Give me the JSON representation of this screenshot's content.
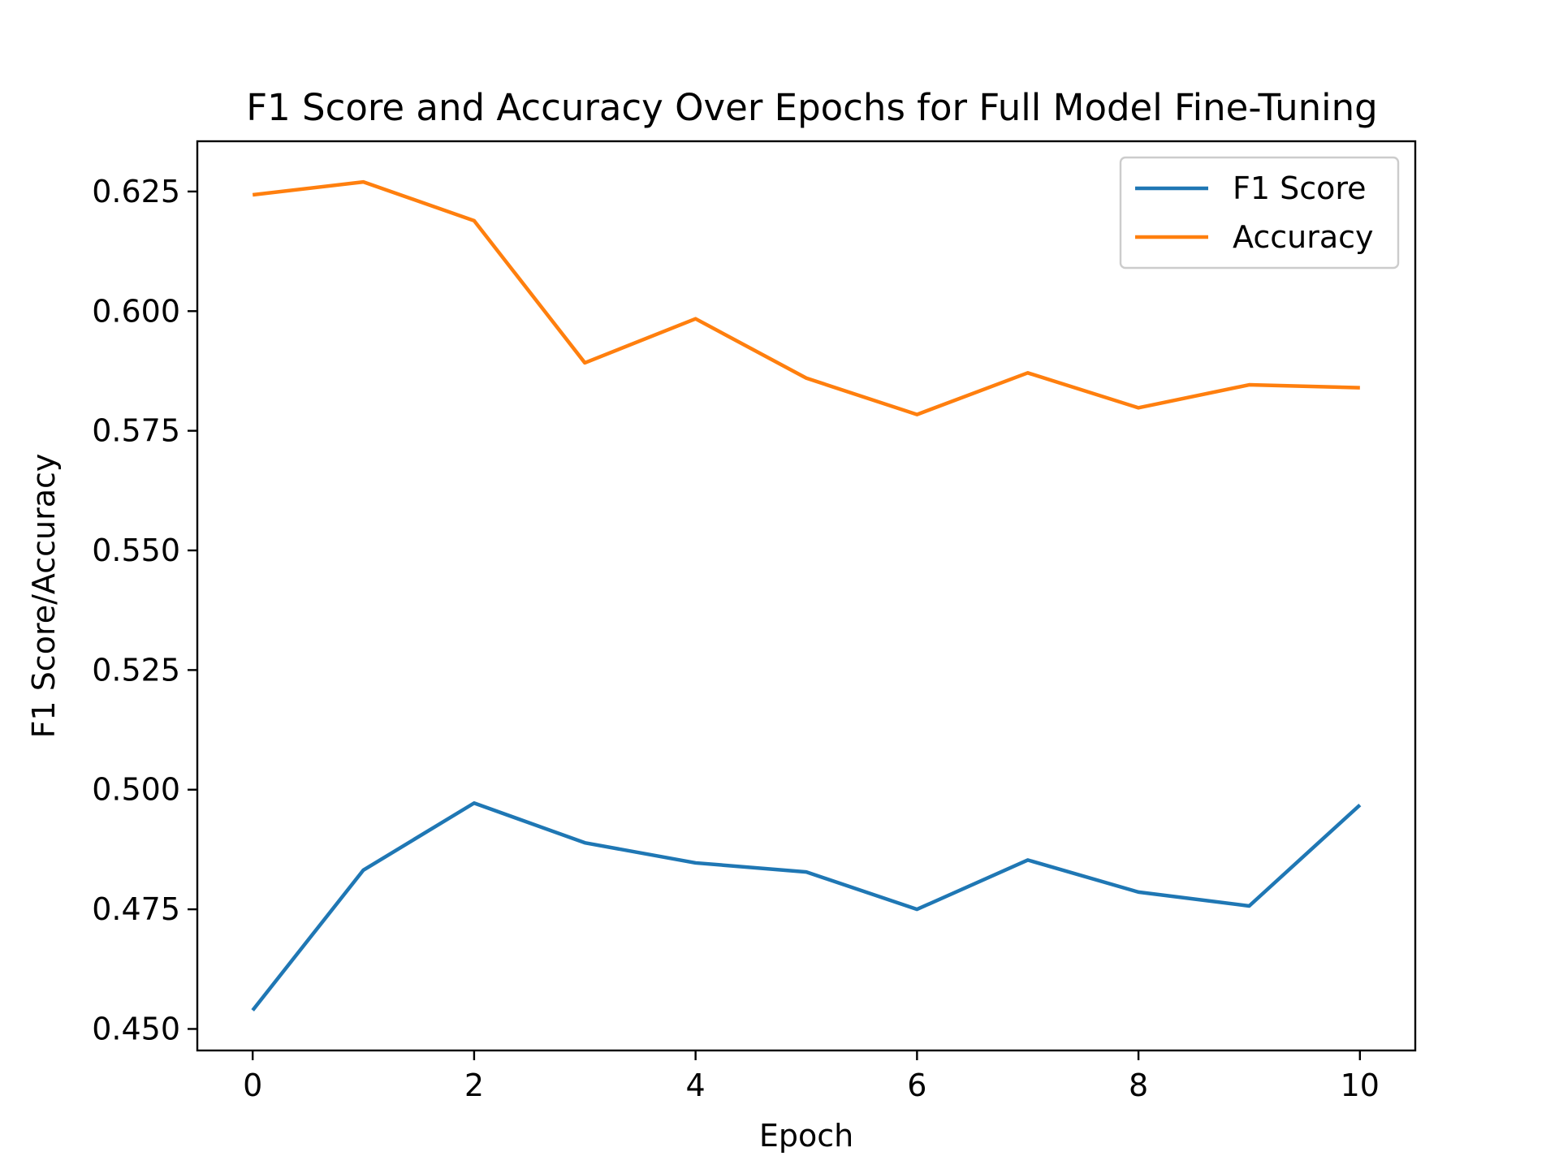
{
  "chart_data": {
    "type": "line",
    "title": "F1 Score and Accuracy Over Epochs for Full Model Fine-Tuning",
    "xlabel": "Epoch",
    "ylabel": "F1 Score/Accuracy",
    "xlim": [
      -0.5,
      10.5
    ],
    "ylim": [
      0.4455,
      0.6355
    ],
    "xticks": [
      0,
      2,
      4,
      6,
      8,
      10
    ],
    "yticks": [
      0.45,
      0.475,
      0.5,
      0.525,
      0.55,
      0.575,
      0.6,
      0.625
    ],
    "ytick_labels": [
      "0.450",
      "0.475",
      "0.500",
      "0.525",
      "0.550",
      "0.575",
      "0.600",
      "0.625"
    ],
    "grid": false,
    "legend_position": "top-right",
    "x": [
      0,
      1,
      2,
      3,
      4,
      5,
      6,
      7,
      8,
      9,
      10
    ],
    "series": [
      {
        "name": "F1 Score",
        "color": "#1f77b4",
        "values": [
          0.4539,
          0.4832,
          0.4972,
          0.4889,
          0.4847,
          0.4828,
          0.475,
          0.4853,
          0.4786,
          0.4757,
          0.4968
        ]
      },
      {
        "name": "Accuracy",
        "color": "#ff7f0e",
        "values": [
          0.6243,
          0.627,
          0.6189,
          0.5892,
          0.5984,
          0.586,
          0.5784,
          0.5871,
          0.5798,
          0.5846,
          0.584
        ]
      }
    ]
  }
}
